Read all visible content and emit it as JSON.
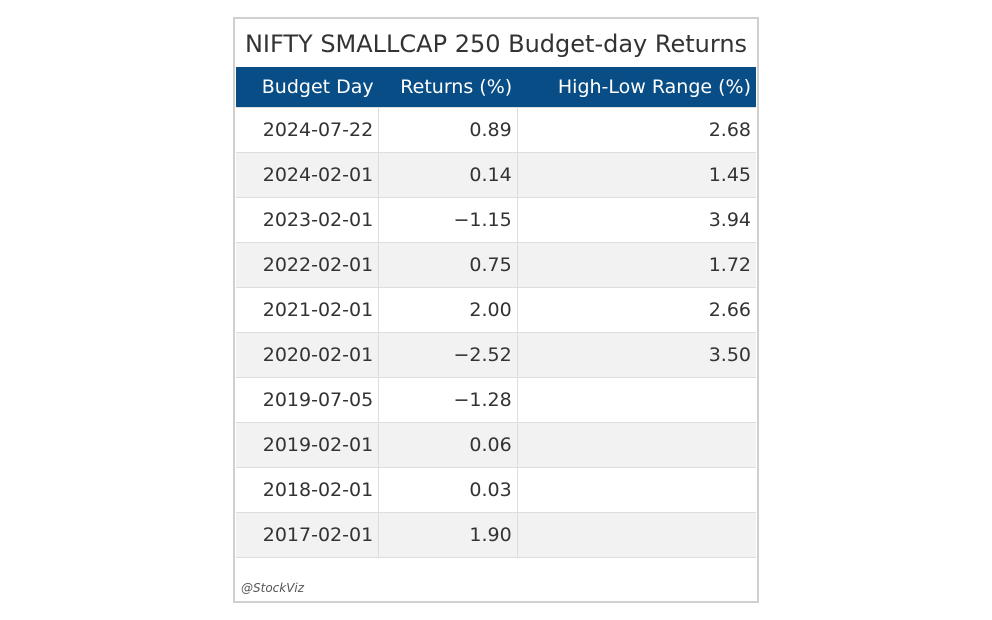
{
  "chart_data": {
    "type": "table",
    "title": "NIFTY SMALLCAP 250 Budget-day Returns",
    "columns": [
      "Budget Day",
      "Returns (%)",
      "High-Low Range (%)"
    ],
    "rows": [
      [
        "2024-07-22",
        "0.89",
        "2.68"
      ],
      [
        "2024-02-01",
        "0.14",
        "1.45"
      ],
      [
        "2023-02-01",
        "−1.15",
        "3.94"
      ],
      [
        "2022-02-01",
        "0.75",
        "1.72"
      ],
      [
        "2021-02-01",
        "2.00",
        "2.66"
      ],
      [
        "2020-02-01",
        "−2.52",
        "3.50"
      ],
      [
        "2019-07-05",
        "−1.28",
        ""
      ],
      [
        "2019-02-01",
        "0.06",
        ""
      ],
      [
        "2018-02-01",
        "0.03",
        ""
      ],
      [
        "2017-02-01",
        "1.90",
        ""
      ]
    ],
    "credit": "@StockViz"
  },
  "colors": {
    "header_bg": "#084d85",
    "header_text": "#ffffff",
    "stripe": "#f2f2f2"
  }
}
